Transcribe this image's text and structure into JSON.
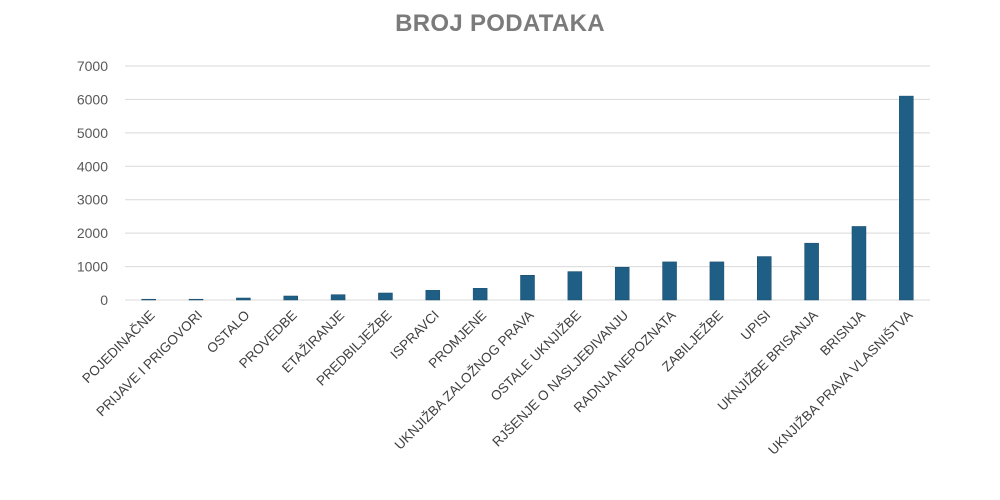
{
  "chart_data": {
    "type": "bar",
    "title": "BROJ PODATAKA",
    "xlabel": "",
    "ylabel": "",
    "ylim": [
      0,
      7000
    ],
    "yticks": [
      0,
      1000,
      2000,
      3000,
      4000,
      5000,
      6000,
      7000
    ],
    "grid": true,
    "legend": "none",
    "bar_color": "#1f5f86",
    "categories": [
      "POJEDINAČNE",
      "PRIJAVE I PRIGOVORI",
      "OSTALO",
      "PROVEDBE",
      "ETAŽIRANJE",
      "PREDBILJEŽBE",
      "ISPRAVCI",
      "PROMJENE",
      "UKNJIŽBA ZALOŽNOG PRAVA",
      "OSTALE UKNJIŽBE",
      "RJŠENJE O NASLJEĐIVANJU",
      "RADNJA NEPOZNATA",
      "ZABILJEŽBE",
      "UPISI",
      "UKNJIŽBE BRISANJA",
      "BRISNJA",
      "UKNJIŽBA PRAVA VLASNIŠTVA"
    ],
    "values": [
      5,
      20,
      60,
      120,
      160,
      210,
      290,
      350,
      740,
      850,
      980,
      1140,
      1140,
      1300,
      1700,
      2200,
      6100
    ]
  }
}
